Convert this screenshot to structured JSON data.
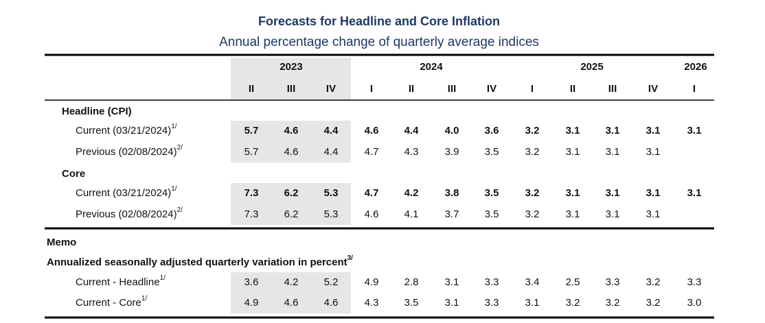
{
  "title": "Forecasts for Headline and Core Inflation",
  "subtitle": "Annual percentage change of quarterly average indices",
  "years": [
    "2023",
    "2024",
    "2025",
    "2026"
  ],
  "quarters": [
    "II",
    "III",
    "IV",
    "I",
    "II",
    "III",
    "IV",
    "I",
    "II",
    "III",
    "IV",
    "I"
  ],
  "sections": [
    {
      "label": "Headline (CPI)",
      "rows": [
        {
          "label": "Current (03/21/2024)",
          "note": "1/",
          "values": [
            "5.7",
            "4.6",
            "4.4",
            "4.6",
            "4.4",
            "4.0",
            "3.6",
            "3.2",
            "3.1",
            "3.1",
            "3.1",
            "3.1"
          ]
        },
        {
          "label": "Previous (02/08/2024)",
          "note": "2/",
          "values": [
            "5.7",
            "4.6",
            "4.4",
            "4.7",
            "4.3",
            "3.9",
            "3.5",
            "3.2",
            "3.1",
            "3.1",
            "3.1"
          ]
        }
      ]
    },
    {
      "label": "Core",
      "rows": [
        {
          "label": "Current (03/21/2024)",
          "note": "1/",
          "values": [
            "7.3",
            "6.2",
            "5.3",
            "4.7",
            "4.2",
            "3.8",
            "3.5",
            "3.2",
            "3.1",
            "3.1",
            "3.1",
            "3.1"
          ]
        },
        {
          "label": "Previous (02/08/2024)",
          "note": "2/",
          "values": [
            "7.3",
            "6.2",
            "5.3",
            "4.6",
            "4.1",
            "3.7",
            "3.5",
            "3.2",
            "3.1",
            "3.1",
            "3.1"
          ]
        }
      ]
    }
  ],
  "memo": {
    "label": "Memo",
    "heading": "Annualized seasonally adjusted quarterly variation in percent",
    "note": "3/",
    "rows": [
      {
        "label": "Current - Headline",
        "note": "1/",
        "values": [
          "3.6",
          "4.2",
          "5.2",
          "4.9",
          "2.8",
          "3.1",
          "3.3",
          "3.4",
          "2.5",
          "3.3",
          "3.2",
          "3.3"
        ]
      },
      {
        "label": "Current - Core",
        "note": "1/",
        "values": [
          "4.9",
          "4.6",
          "4.6",
          "4.3",
          "3.5",
          "3.1",
          "3.3",
          "3.1",
          "3.2",
          "3.2",
          "3.2",
          "3.0"
        ]
      }
    ]
  }
}
